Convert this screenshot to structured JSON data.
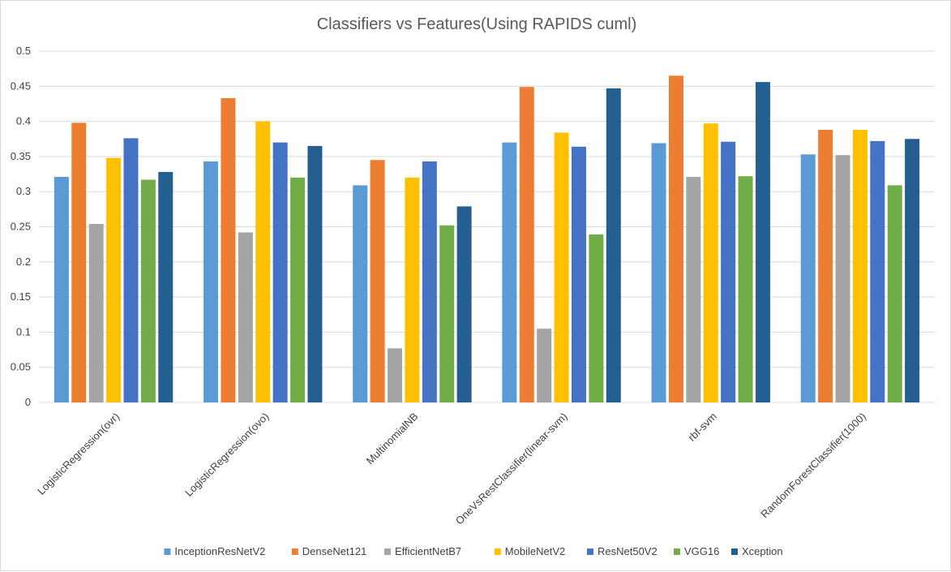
{
  "chart_data": {
    "type": "bar",
    "title": "Classifiers vs Features(Using RAPIDS cuml)",
    "xlabel": "",
    "ylabel": "",
    "ylim": [
      0,
      0.5
    ],
    "yticks": [
      "0",
      "0.05",
      "0.1",
      "0.15",
      "0.2",
      "0.25",
      "0.3",
      "0.35",
      "0.4",
      "0.45",
      "0.5"
    ],
    "grid": true,
    "legend_position": "bottom",
    "categories": [
      "LogisticRegression(ovr)",
      "LogisticRegression(ovo)",
      "MultinomialNB",
      "OneVsRestClassifier(linear-svm)",
      "rbf-svm",
      "RandomForestClassifier(1000)"
    ],
    "series": [
      {
        "name": "InceptionResNetV2",
        "color": "#5b9bd5",
        "values": [
          0.321,
          0.343,
          0.309,
          0.37,
          0.369,
          0.353
        ]
      },
      {
        "name": "DenseNet121",
        "color": "#ed7d31",
        "values": [
          0.398,
          0.433,
          0.345,
          0.449,
          0.465,
          0.388
        ]
      },
      {
        "name": "EfficientNetB7",
        "color": "#a5a5a5",
        "values": [
          0.254,
          0.242,
          0.077,
          0.105,
          0.321,
          0.352
        ]
      },
      {
        "name": "MobileNetV2",
        "color": "#ffc000",
        "values": [
          0.348,
          0.4,
          0.32,
          0.384,
          0.397,
          0.388
        ]
      },
      {
        "name": "ResNet50V2",
        "color": "#4472c4",
        "values": [
          0.376,
          0.37,
          0.343,
          0.364,
          0.371,
          0.372
        ]
      },
      {
        "name": "VGG16",
        "color": "#70ad47",
        "values": [
          0.317,
          0.32,
          0.252,
          0.239,
          0.322,
          0.309
        ]
      },
      {
        "name": "Xception",
        "color": "#255e91",
        "values": [
          0.328,
          0.365,
          0.279,
          0.447,
          0.456,
          0.375
        ]
      }
    ]
  }
}
